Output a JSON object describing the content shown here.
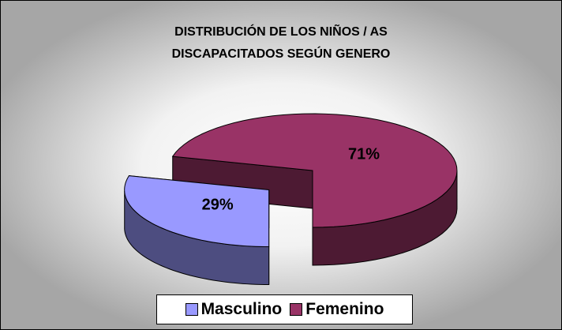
{
  "chart_data": {
    "type": "pie3d",
    "title": "DISTRIBUCIÓN DE LOS NIÑOS / AS DISCAPACITADOS SEGÚN GENERO",
    "categories": [
      "Masculino",
      "Femenino"
    ],
    "values": [
      29,
      71
    ],
    "value_labels": [
      "29%",
      "71%"
    ],
    "colors": [
      "#9999ff",
      "#993366"
    ],
    "exploded": [
      true,
      false
    ],
    "legend": "bottom"
  }
}
